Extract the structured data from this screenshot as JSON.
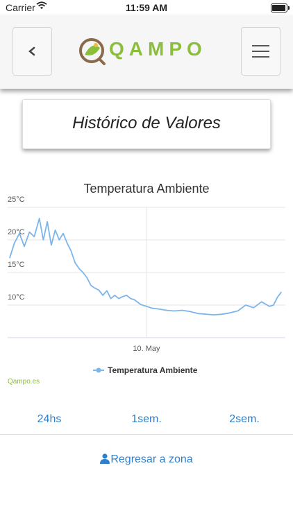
{
  "status_bar": {
    "carrier": "Carrier",
    "time": "11:59 AM"
  },
  "header": {
    "logo_text": "QAMPO",
    "back_icon": "chevron-left-icon",
    "menu_icon": "hamburger-menu-icon",
    "accent": "#8bbe3a"
  },
  "page_title": "Histórico de Valores",
  "chart_data": {
    "type": "line",
    "title": "Temperatura Ambiente",
    "y_tick_labels": [
      "25°C",
      "20°C",
      "15°C",
      "10°C"
    ],
    "x_tick_labels": [
      "10. May"
    ],
    "ylim": [
      5,
      25
    ],
    "grid": true,
    "legend": "bottom",
    "series": [
      {
        "name": "Temperatura Ambiente",
        "color": "#7cb5ec",
        "x_unit": "days_offset_from_10_May",
        "x": [
          -3.45,
          -3.33,
          -3.2,
          -3.08,
          -2.95,
          -2.83,
          -2.7,
          -2.6,
          -2.5,
          -2.4,
          -2.3,
          -2.2,
          -2.1,
          -2.0,
          -1.9,
          -1.8,
          -1.7,
          -1.6,
          -1.5,
          -1.4,
          -1.3,
          -1.2,
          -1.1,
          -1.0,
          -0.9,
          -0.8,
          -0.7,
          -0.6,
          -0.5,
          -0.4,
          -0.3,
          -0.15,
          0.0,
          0.15,
          0.3,
          0.5,
          0.7,
          0.9,
          1.1,
          1.3,
          1.5,
          1.7,
          1.9,
          2.1,
          2.3,
          2.5,
          2.7,
          2.9,
          3.1,
          3.2,
          3.3,
          3.4
        ],
        "values": [
          17.2,
          19.5,
          21.0,
          19.0,
          21.2,
          20.5,
          23.3,
          20.0,
          22.8,
          19.2,
          21.5,
          20.0,
          21.0,
          19.5,
          18.3,
          16.5,
          15.6,
          15.0,
          14.2,
          13.0,
          12.6,
          12.3,
          11.5,
          12.2,
          11.0,
          11.5,
          11.0,
          11.3,
          11.5,
          11.0,
          10.8,
          10.1,
          9.8,
          9.5,
          9.4,
          9.2,
          9.1,
          9.2,
          9.0,
          8.7,
          8.6,
          8.5,
          8.6,
          8.8,
          9.1,
          10.0,
          9.6,
          10.5,
          9.8,
          10.0,
          11.2,
          12.0
        ]
      }
    ]
  },
  "credits": "Qampo.es",
  "ranges": [
    "24hs",
    "1sem.",
    "2sem."
  ],
  "back_to_zone": {
    "label": "Regresar a zona",
    "icon": "user-icon"
  }
}
